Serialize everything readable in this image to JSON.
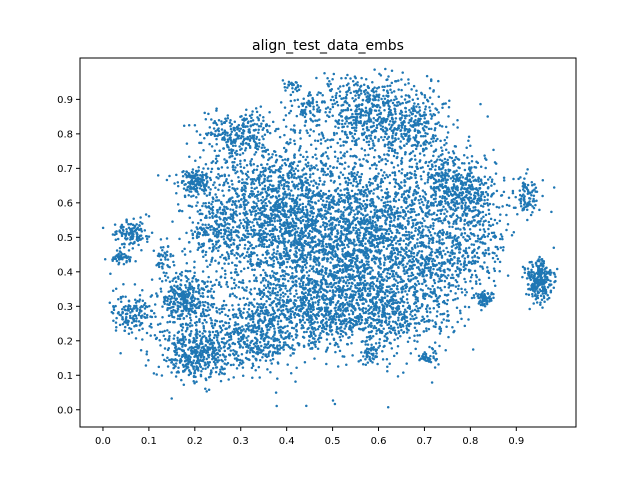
{
  "chart_data": {
    "type": "scatter",
    "title": "align_test_data_embs",
    "xlabel": "",
    "ylabel": "",
    "xlim": [
      -0.05,
      1.03
    ],
    "ylim": [
      -0.05,
      1.02
    ],
    "x_ticks": [
      "0.0",
      "0.1",
      "0.2",
      "0.3",
      "0.4",
      "0.5",
      "0.6",
      "0.7",
      "0.8",
      "0.9"
    ],
    "y_ticks": [
      "0.0",
      "0.1",
      "0.2",
      "0.3",
      "0.4",
      "0.5",
      "0.6",
      "0.7",
      "0.8",
      "0.9"
    ],
    "grid": false,
    "legend": false,
    "marker_color": "#1f77b4",
    "clusters": [
      {
        "cx": 0.43,
        "cy": 0.5,
        "sx": 0.1,
        "sy": 0.12,
        "n": 1600
      },
      {
        "cx": 0.6,
        "cy": 0.5,
        "sx": 0.08,
        "sy": 0.11,
        "n": 1100
      },
      {
        "cx": 0.33,
        "cy": 0.62,
        "sx": 0.06,
        "sy": 0.08,
        "n": 500
      },
      {
        "cx": 0.3,
        "cy": 0.8,
        "sx": 0.04,
        "sy": 0.03,
        "n": 250
      },
      {
        "cx": 0.58,
        "cy": 0.87,
        "sx": 0.06,
        "sy": 0.05,
        "n": 500
      },
      {
        "cx": 0.67,
        "cy": 0.82,
        "sx": 0.04,
        "sy": 0.05,
        "n": 250
      },
      {
        "cx": 0.75,
        "cy": 0.66,
        "sx": 0.04,
        "sy": 0.05,
        "n": 300
      },
      {
        "cx": 0.8,
        "cy": 0.62,
        "sx": 0.03,
        "sy": 0.04,
        "n": 200
      },
      {
        "cx": 0.74,
        "cy": 0.42,
        "sx": 0.04,
        "sy": 0.08,
        "n": 350
      },
      {
        "cx": 0.82,
        "cy": 0.48,
        "sx": 0.03,
        "sy": 0.06,
        "n": 150
      },
      {
        "cx": 0.18,
        "cy": 0.32,
        "sx": 0.03,
        "sy": 0.04,
        "n": 350
      },
      {
        "cx": 0.2,
        "cy": 0.16,
        "sx": 0.04,
        "sy": 0.04,
        "n": 450
      },
      {
        "cx": 0.33,
        "cy": 0.22,
        "sx": 0.05,
        "sy": 0.05,
        "n": 450
      },
      {
        "cx": 0.45,
        "cy": 0.28,
        "sx": 0.06,
        "sy": 0.05,
        "n": 400
      },
      {
        "cx": 0.55,
        "cy": 0.3,
        "sx": 0.05,
        "sy": 0.05,
        "n": 300
      },
      {
        "cx": 0.64,
        "cy": 0.28,
        "sx": 0.05,
        "sy": 0.06,
        "n": 300
      },
      {
        "cx": 0.2,
        "cy": 0.66,
        "sx": 0.02,
        "sy": 0.02,
        "n": 150
      },
      {
        "cx": 0.24,
        "cy": 0.5,
        "sx": 0.03,
        "sy": 0.05,
        "n": 150
      },
      {
        "cx": 0.06,
        "cy": 0.51,
        "sx": 0.02,
        "sy": 0.02,
        "n": 120
      },
      {
        "cx": 0.04,
        "cy": 0.44,
        "sx": 0.01,
        "sy": 0.01,
        "n": 50
      },
      {
        "cx": 0.06,
        "cy": 0.28,
        "sx": 0.025,
        "sy": 0.03,
        "n": 150
      },
      {
        "cx": 0.13,
        "cy": 0.44,
        "sx": 0.01,
        "sy": 0.02,
        "n": 40
      },
      {
        "cx": 0.95,
        "cy": 0.38,
        "sx": 0.015,
        "sy": 0.03,
        "n": 260
      },
      {
        "cx": 0.92,
        "cy": 0.62,
        "sx": 0.015,
        "sy": 0.03,
        "n": 90
      },
      {
        "cx": 0.83,
        "cy": 0.32,
        "sx": 0.01,
        "sy": 0.01,
        "n": 70
      },
      {
        "cx": 0.71,
        "cy": 0.15,
        "sx": 0.01,
        "sy": 0.01,
        "n": 40
      },
      {
        "cx": 0.58,
        "cy": 0.16,
        "sx": 0.01,
        "sy": 0.02,
        "n": 50
      },
      {
        "cx": 0.45,
        "cy": 0.88,
        "sx": 0.02,
        "sy": 0.02,
        "n": 50
      },
      {
        "cx": 0.41,
        "cy": 0.94,
        "sx": 0.01,
        "sy": 0.01,
        "n": 25
      },
      {
        "cx": 0.52,
        "cy": 0.55,
        "sx": 0.14,
        "sy": 0.2,
        "n": 900
      }
    ]
  }
}
